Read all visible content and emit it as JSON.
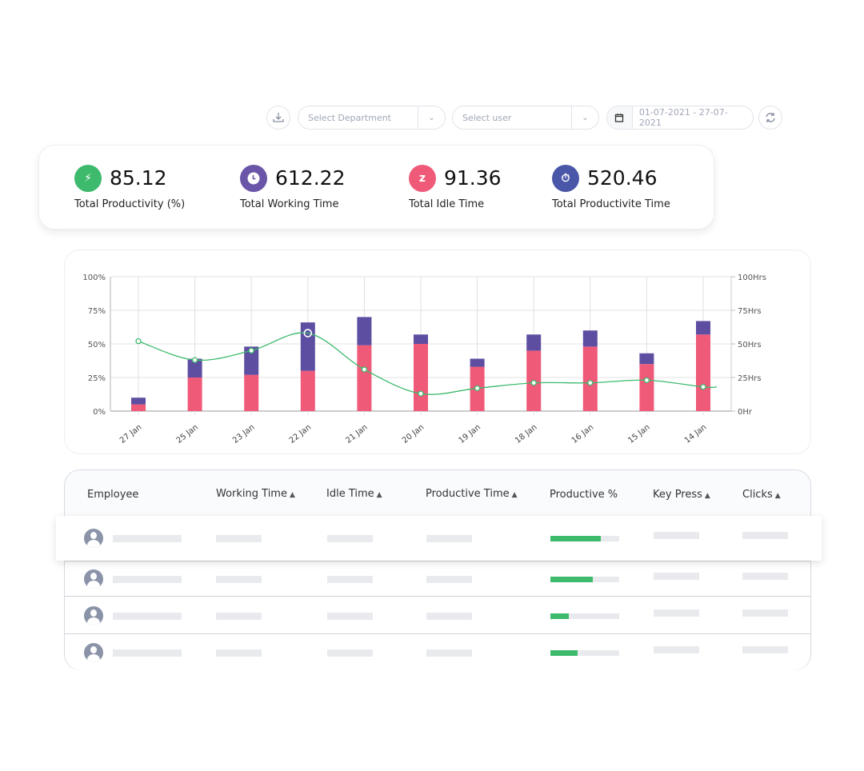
{
  "toolbar": {
    "download_icon": "download-icon",
    "department_placeholder": "Select Department",
    "user_placeholder": "Select user",
    "date_range": "01-07-2021 - 27-07-2021",
    "refresh_icon": "refresh-icon"
  },
  "stats": [
    {
      "value": "85.12",
      "label": "Total Productivity (%)",
      "icon": "lightbulb-bolt-icon",
      "color": "#3dba6c"
    },
    {
      "value": "612.22",
      "label": "Total Working Time",
      "icon": "clock-icon",
      "color": "#6a55a8"
    },
    {
      "value": "91.36",
      "label": "Total Idle Time",
      "icon": "pie-sleep-icon",
      "color": "#ef5a78"
    },
    {
      "value": "520.46",
      "label": "Total Productivite Time",
      "icon": "stopwatch-bolt-icon",
      "color": "#4a57a8"
    }
  ],
  "chart_data": {
    "type": "bar",
    "stacked": true,
    "categories": [
      "27 Jan",
      "25 Jan",
      "23 Jan",
      "22 Jan",
      "21 Jan",
      "20 Jan",
      "19 Jan",
      "18 Jan",
      "16 Jan",
      "15 Jan",
      "14 Jan"
    ],
    "series": [
      {
        "type": "bar",
        "color": "#ef5a78",
        "values": [
          5,
          25,
          27,
          30,
          49,
          50,
          33,
          45,
          48,
          35,
          57
        ]
      },
      {
        "type": "bar",
        "color": "#5e4ea2",
        "values": [
          5,
          14,
          21,
          36,
          21,
          7,
          6,
          12,
          12,
          8,
          10
        ]
      },
      {
        "type": "line",
        "axis": "right",
        "color": "#3dba6c",
        "values": [
          52,
          38,
          45,
          58,
          31,
          13,
          17,
          21,
          21,
          23,
          18
        ]
      }
    ],
    "y_left": {
      "ticks": [
        "0%",
        "25%",
        "50%",
        "75%",
        "100%"
      ],
      "range": [
        0,
        100
      ]
    },
    "y_right": {
      "ticks": [
        "0Hr",
        "25Hrs",
        "50Hrs",
        "75Hrs",
        "100Hrs"
      ],
      "range": [
        0,
        100
      ]
    },
    "grid": true,
    "legend": "none"
  },
  "table": {
    "columns": [
      "Employee",
      "Working Time",
      "Idle Time",
      "Productive Time",
      "Productive %",
      "Key Press",
      "Clicks"
    ],
    "sortable": [
      false,
      true,
      true,
      true,
      false,
      true,
      true
    ],
    "rows": [
      {
        "productive_pct": 73
      },
      {
        "productive_pct": 62
      },
      {
        "productive_pct": 27
      },
      {
        "productive_pct": 40
      }
    ]
  }
}
